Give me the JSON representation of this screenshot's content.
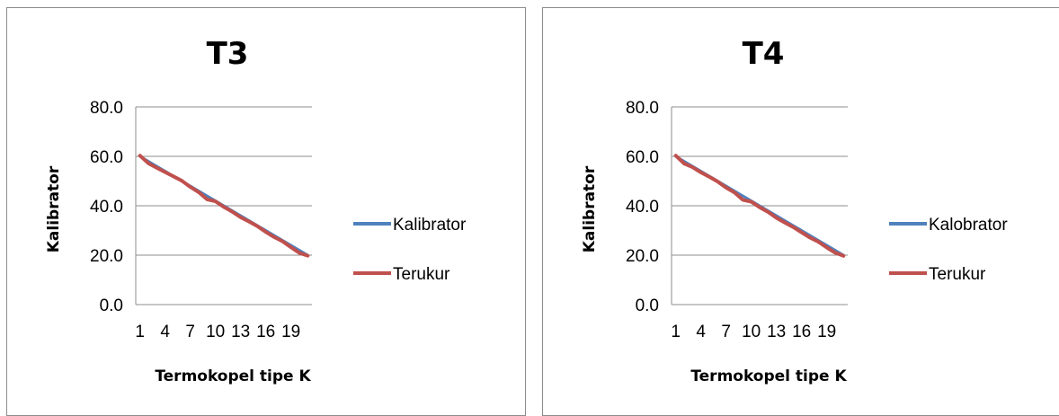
{
  "chart_data": [
    {
      "type": "line",
      "title": "T3",
      "xlabel": "Termokopel tipe K",
      "ylabel": "Kalibrator",
      "ylim": [
        0,
        80
      ],
      "yticks": [
        "0.0",
        "20.0",
        "40.0",
        "60.0",
        "80.0"
      ],
      "x": [
        1,
        2,
        3,
        4,
        5,
        6,
        7,
        8,
        9,
        10,
        11,
        12,
        13,
        14,
        15,
        16,
        17,
        18,
        19,
        20,
        21
      ],
      "xticks": [
        "1",
        "4",
        "7",
        "10",
        "13",
        "16",
        "19"
      ],
      "grid": true,
      "legend": "right",
      "series": [
        {
          "name": "Kalibrator",
          "color": "#4f81bd",
          "values": [
            60,
            58,
            56,
            54,
            52,
            50,
            48,
            46,
            44,
            42,
            40,
            38,
            36,
            34,
            32,
            30,
            28,
            26,
            24,
            22,
            20
          ]
        },
        {
          "name": "Terukur",
          "color": "#c0504d",
          "values": [
            60.3,
            57.2,
            55.4,
            53.6,
            51.9,
            50.1,
            47.6,
            45.5,
            42.6,
            41.8,
            39.5,
            37.6,
            35.3,
            33.6,
            31.7,
            29.4,
            27.3,
            25.6,
            23.2,
            20.9,
            19.8
          ]
        }
      ]
    },
    {
      "type": "line",
      "title": "T4",
      "xlabel": "Termokopel tipe K",
      "ylabel": "Kalibrator",
      "ylim": [
        0,
        80
      ],
      "yticks": [
        "0.0",
        "20.0",
        "40.0",
        "60.0",
        "80.0"
      ],
      "x": [
        1,
        2,
        3,
        4,
        5,
        6,
        7,
        8,
        9,
        10,
        11,
        12,
        13,
        14,
        15,
        16,
        17,
        18,
        19,
        20,
        21
      ],
      "xticks": [
        "1",
        "4",
        "7",
        "10",
        "13",
        "16",
        "19"
      ],
      "grid": true,
      "legend": "right",
      "series": [
        {
          "name": "Kalobrator",
          "color": "#4f81bd",
          "values": [
            60,
            58,
            56,
            54,
            52,
            50,
            48,
            46,
            44,
            42,
            40,
            38,
            36,
            34,
            32,
            30,
            28,
            26,
            24,
            22,
            20
          ]
        },
        {
          "name": "Terukur",
          "color": "#c0504d",
          "values": [
            60.3,
            57.1,
            55.6,
            53.5,
            51.7,
            49.8,
            47.3,
            45.4,
            42.4,
            41.6,
            39.4,
            37.5,
            35.1,
            33.2,
            31.4,
            29.2,
            27.1,
            25.4,
            23.1,
            21.0,
            19.7
          ]
        }
      ]
    }
  ]
}
